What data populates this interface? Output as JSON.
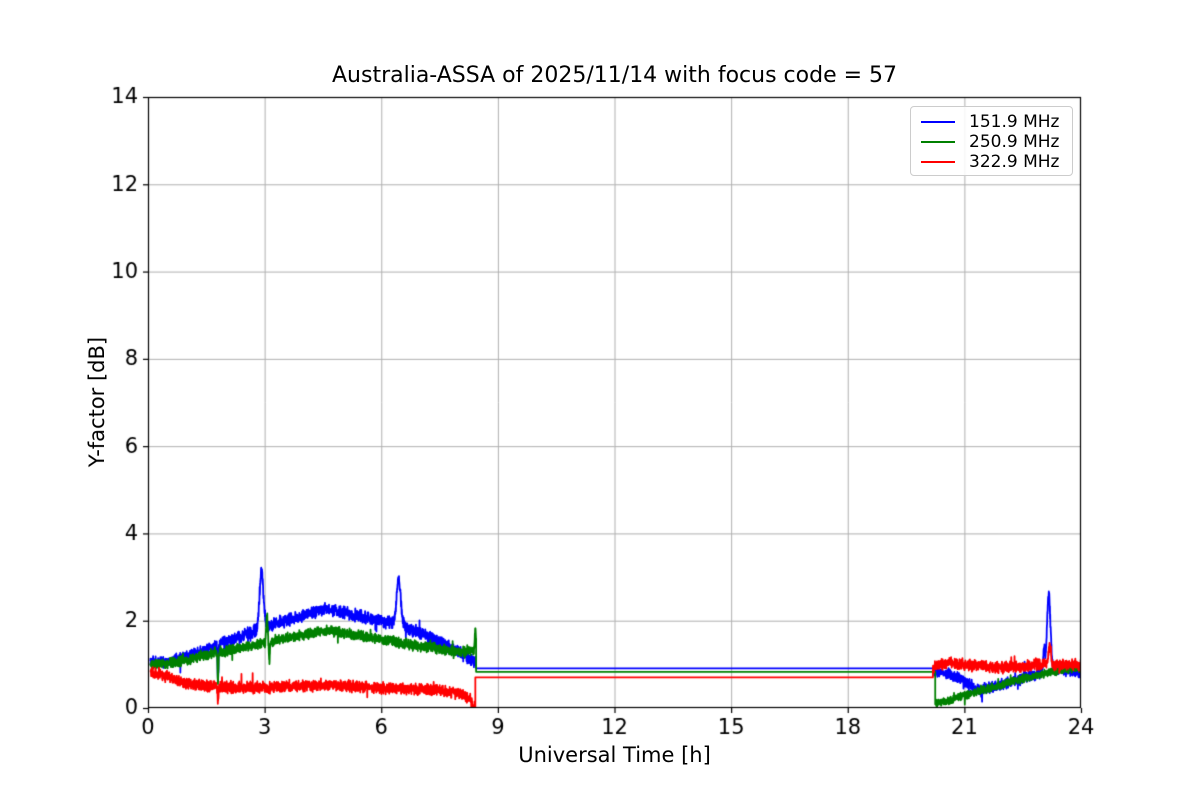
{
  "chart_data": {
    "type": "line",
    "title": "Australia-ASSA of 2025/11/14 with focus code = 57",
    "xlabel": "Universal Time [h]",
    "ylabel": "Y-factor [dB]",
    "xlim": [
      0,
      24
    ],
    "ylim": [
      0,
      14
    ],
    "xticks": [
      0,
      3,
      6,
      9,
      12,
      15,
      18,
      21,
      24
    ],
    "yticks": [
      0,
      2,
      4,
      6,
      8,
      10,
      12,
      14
    ],
    "grid": {
      "show": true,
      "color": "#b0b0b0"
    },
    "axis_color": "#000000",
    "background": "#ffffff",
    "legend": {
      "position": "upper-right",
      "border_color": "#cccccc"
    },
    "series": [
      {
        "name": "151.9 MHz",
        "color": "#0000ff",
        "seed": 42,
        "segments": [
          {
            "type": "noisy",
            "x0": 0.06,
            "x1": 8.44,
            "noise": 0.11,
            "keypoints": [
              [
                0.06,
                1.05
              ],
              [
                0.5,
                1.05
              ],
              [
                1.0,
                1.18
              ],
              [
                1.5,
                1.35
              ],
              [
                2.0,
                1.5
              ],
              [
                2.5,
                1.68
              ],
              [
                3.0,
                1.85
              ],
              [
                3.5,
                2.0
              ],
              [
                4.0,
                2.12
              ],
              [
                4.6,
                2.28
              ],
              [
                5.0,
                2.2
              ],
              [
                5.5,
                2.1
              ],
              [
                6.0,
                2.0
              ],
              [
                6.5,
                1.9
              ],
              [
                7.0,
                1.72
              ],
              [
                7.5,
                1.5
              ],
              [
                8.0,
                1.28
              ],
              [
                8.44,
                1.05
              ]
            ],
            "spikes": [
              [
                2.92,
                1.3,
                0.05
              ],
              [
                6.45,
                1.05,
                0.055
              ],
              [
                1.8,
                -0.8,
                0.012
              ]
            ]
          },
          {
            "type": "flat",
            "x0": 8.44,
            "x1": 20.22,
            "y": 0.91
          },
          {
            "type": "noisy",
            "x0": 20.22,
            "x1": 24.0,
            "noise": 0.1,
            "keypoints": [
              [
                20.22,
                0.85
              ],
              [
                20.6,
                0.78
              ],
              [
                21.0,
                0.62
              ],
              [
                21.35,
                0.42
              ],
              [
                21.7,
                0.48
              ],
              [
                22.0,
                0.55
              ],
              [
                22.5,
                0.68
              ],
              [
                23.0,
                0.8
              ],
              [
                23.5,
                0.88
              ],
              [
                24.0,
                0.8
              ]
            ],
            "spikes": [
              [
                23.17,
                1.75,
                0.045
              ],
              [
                23.05,
                0.5,
                0.02
              ],
              [
                22.55,
                0.35,
                0.012
              ],
              [
                21.45,
                -0.2,
                0.015
              ]
            ]
          }
        ]
      },
      {
        "name": "250.9 MHz",
        "color": "#008000",
        "seed": 1337,
        "segments": [
          {
            "type": "noisy",
            "x0": 0.06,
            "x1": 8.44,
            "noise": 0.09,
            "keypoints": [
              [
                0.06,
                0.98
              ],
              [
                0.5,
                1.02
              ],
              [
                1.0,
                1.1
              ],
              [
                1.5,
                1.22
              ],
              [
                2.0,
                1.32
              ],
              [
                2.5,
                1.4
              ],
              [
                3.0,
                1.5
              ],
              [
                3.5,
                1.6
              ],
              [
                4.0,
                1.68
              ],
              [
                4.6,
                1.78
              ],
              [
                5.0,
                1.72
              ],
              [
                5.5,
                1.65
              ],
              [
                6.0,
                1.58
              ],
              [
                6.5,
                1.48
              ],
              [
                7.0,
                1.42
              ],
              [
                7.5,
                1.36
              ],
              [
                8.0,
                1.3
              ],
              [
                8.44,
                1.32
              ]
            ],
            "spikes": [
              [
                3.06,
                0.6,
                0.018
              ],
              [
                3.12,
                -0.45,
                0.013
              ],
              [
                1.8,
                -0.7,
                0.011
              ],
              [
                8.42,
                0.45,
                0.015
              ]
            ]
          },
          {
            "type": "flat",
            "x0": 8.44,
            "x1": 20.25,
            "y": 0.83
          },
          {
            "type": "noisy",
            "x0": 20.25,
            "x1": 24.0,
            "noise": 0.07,
            "keypoints": [
              [
                20.25,
                0.12
              ],
              [
                20.6,
                0.17
              ],
              [
                21.0,
                0.28
              ],
              [
                21.5,
                0.42
              ],
              [
                22.0,
                0.55
              ],
              [
                22.5,
                0.67
              ],
              [
                23.0,
                0.78
              ],
              [
                23.5,
                0.87
              ],
              [
                24.0,
                0.92
              ]
            ],
            "spikes": []
          }
        ]
      },
      {
        "name": "322.9 MHz",
        "color": "#ff0000",
        "seed": 2024,
        "segments": [
          {
            "type": "noisy",
            "x0": 0.06,
            "x1": 8.42,
            "noise": 0.1,
            "keypoints": [
              [
                0.06,
                0.82
              ],
              [
                0.3,
                0.78
              ],
              [
                0.6,
                0.68
              ],
              [
                1.0,
                0.57
              ],
              [
                1.5,
                0.5
              ],
              [
                2.0,
                0.48
              ],
              [
                3.0,
                0.47
              ],
              [
                4.0,
                0.5
              ],
              [
                5.0,
                0.52
              ],
              [
                5.5,
                0.5
              ],
              [
                6.0,
                0.46
              ],
              [
                6.5,
                0.44
              ],
              [
                7.0,
                0.42
              ],
              [
                7.5,
                0.4
              ],
              [
                8.0,
                0.32
              ],
              [
                8.42,
                0.15
              ]
            ],
            "spikes": [
              [
                8.38,
                -0.15,
                0.04
              ],
              [
                1.8,
                -0.35,
                0.01
              ]
            ]
          },
          {
            "type": "flat",
            "x0": 8.42,
            "x1": 20.19,
            "y": 0.7
          },
          {
            "type": "noisy",
            "x0": 20.19,
            "x1": 24.0,
            "noise": 0.1,
            "keypoints": [
              [
                20.19,
                0.92
              ],
              [
                20.6,
                1.04
              ],
              [
                21.0,
                1.0
              ],
              [
                21.5,
                0.95
              ],
              [
                22.0,
                0.93
              ],
              [
                22.5,
                0.95
              ],
              [
                23.0,
                1.0
              ],
              [
                23.5,
                0.98
              ],
              [
                24.0,
                1.0
              ]
            ],
            "spikes": [
              [
                23.2,
                0.45,
                0.03
              ]
            ]
          }
        ]
      }
    ]
  }
}
